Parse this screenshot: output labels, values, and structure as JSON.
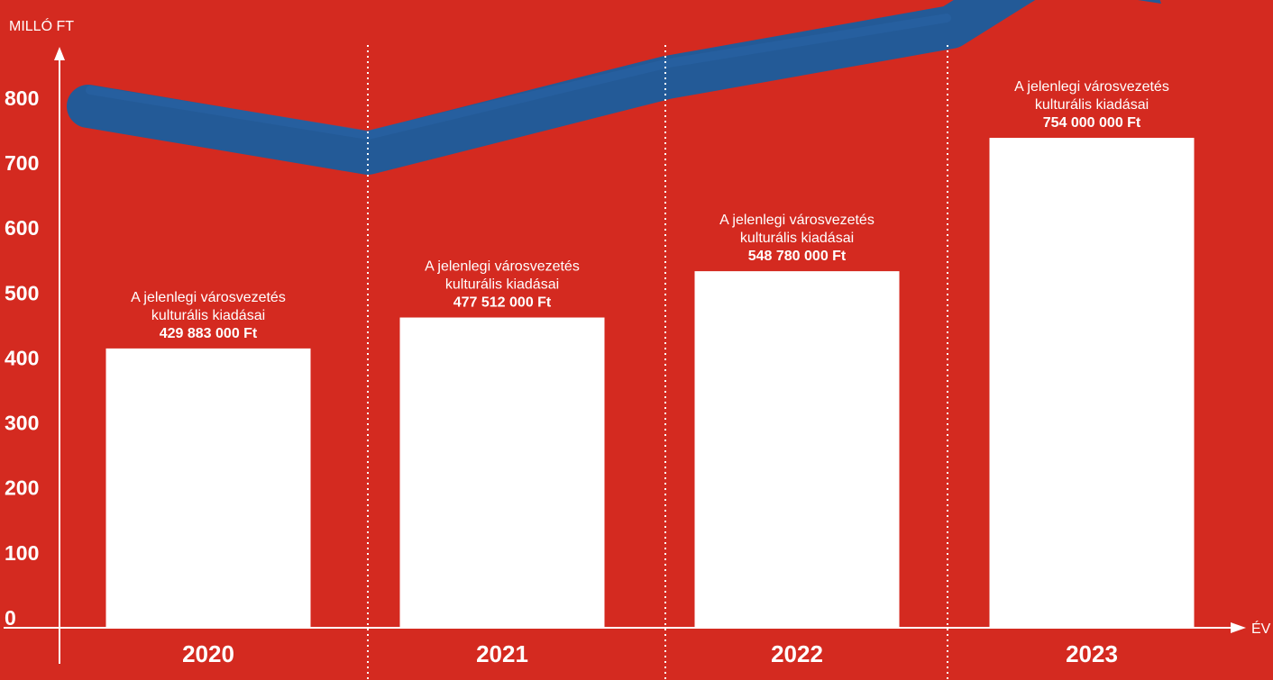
{
  "colors": {
    "background": "#d42a20",
    "bars": "#ffffff",
    "trend_stroke": "#235a97",
    "text": "#ffffff"
  },
  "chart_data": {
    "type": "bar",
    "ylabel": "MILLÓ FT",
    "xlabel": "ÉV",
    "ylim": [
      0,
      870
    ],
    "yticks": [
      "0",
      "100",
      "200",
      "300",
      "400",
      "500",
      "600",
      "700",
      "800"
    ],
    "categories": [
      "2020",
      "2021",
      "2022",
      "2023"
    ],
    "values": [
      429.883,
      477.512,
      548.78,
      754
    ],
    "data_labels": [
      {
        "line1": "A jelenlegi városvezetés",
        "line2": "kulturális kiadásai",
        "value": "429 883 000 Ft"
      },
      {
        "line1": "A jelenlegi városvezetés",
        "line2": "kulturális kiadásai",
        "value": "477 512 000 Ft"
      },
      {
        "line1": "A jelenlegi városvezetés",
        "line2": "kulturális kiadásai",
        "value": "548 780 000 Ft"
      },
      {
        "line1": "A jelenlegi városvezetés",
        "line2": "kulturális kiadásai",
        "value": "754 000 000 Ft"
      }
    ],
    "grid": false,
    "decoration": "blue brush-stroke arrow rising to the upper right"
  }
}
